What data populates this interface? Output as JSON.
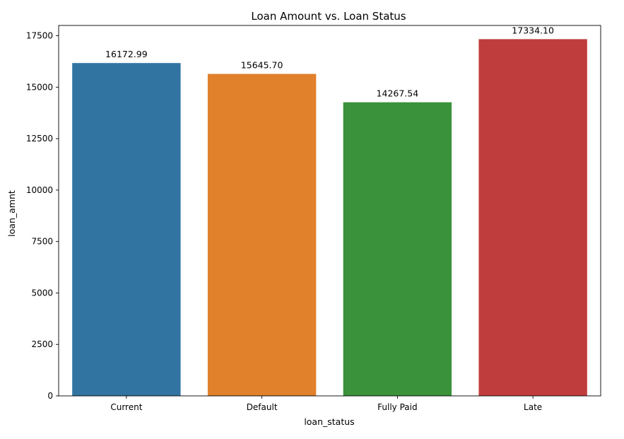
{
  "chart_data": {
    "type": "bar",
    "title": "Loan Amount vs. Loan Status",
    "xlabel": "loan_status",
    "ylabel": "loan_amnt",
    "categories": [
      "Current",
      "Default",
      "Fully Paid",
      "Late"
    ],
    "values": [
      16172.99,
      15645.7,
      14267.54,
      17334.1
    ],
    "value_labels": [
      "16172.99",
      "15645.70",
      "14267.54",
      "17334.10"
    ],
    "colors": [
      "#3274a1",
      "#e1812c",
      "#3a923a",
      "#c03d3e"
    ],
    "ylim": [
      0,
      18000
    ],
    "yticks": [
      0,
      2500,
      5000,
      7500,
      10000,
      12500,
      15000,
      17500
    ],
    "ytick_labels": [
      "0",
      "2500",
      "5000",
      "7500",
      "10000",
      "12500",
      "15000",
      "17500"
    ],
    "grid": false,
    "legend": "none"
  }
}
